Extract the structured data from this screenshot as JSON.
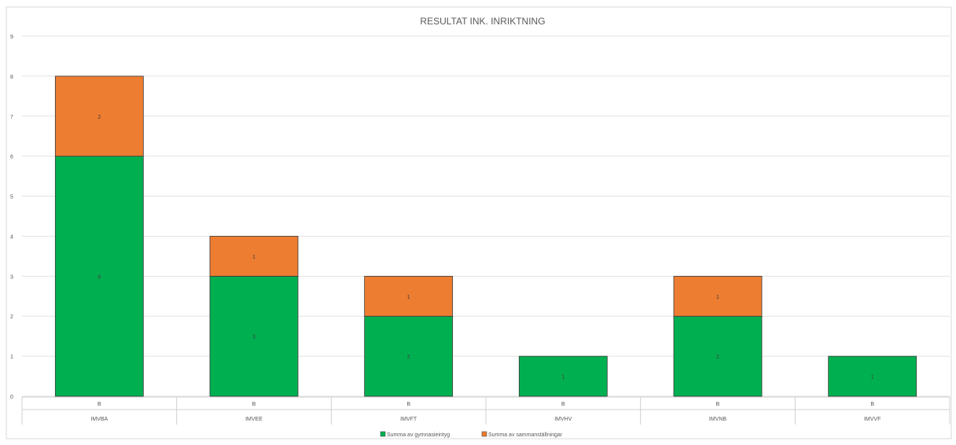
{
  "chart_data": {
    "type": "bar",
    "stacked": true,
    "title": "RESULTAT INK. INRIKTNING",
    "xlabel": "",
    "ylabel": "",
    "ylim": [
      0,
      9
    ],
    "yticks": [
      "0",
      "1",
      "2",
      "3",
      "4",
      "5",
      "6",
      "7",
      "8",
      "9"
    ],
    "grid": true,
    "legend_position": "bottom",
    "category_groups": [
      "IMVBA",
      "IMVEE",
      "IMVFT",
      "IMVHV",
      "IMVNB",
      "IMVVF"
    ],
    "categories": [
      "B",
      "B",
      "B",
      "B",
      "B",
      "B"
    ],
    "series": [
      {
        "name": "Summa av gymnasieintyg",
        "color": "#00B050",
        "values": [
          6,
          3,
          2,
          1,
          2,
          1
        ],
        "labels": [
          "6",
          "3",
          "2",
          "1",
          "2",
          "1"
        ]
      },
      {
        "name": "Summa av sammanställningar",
        "color": "#ED7D31",
        "values": [
          2,
          1,
          1,
          0,
          1,
          0
        ],
        "labels": [
          "2",
          "1",
          "1",
          "",
          "1",
          ""
        ]
      }
    ]
  }
}
